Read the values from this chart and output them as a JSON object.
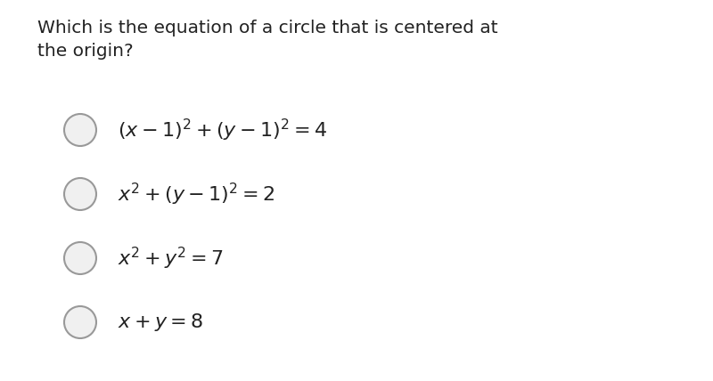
{
  "background_color": "#ffffff",
  "question_text": "Which is the equation of a circle that is centered at\nthe origin?",
  "question_fontsize": 14.5,
  "question_color": "#222222",
  "options": [
    {
      "formula": "$(x - 1)^2 + (y - 1)^2 = 4$",
      "fontsize": 16
    },
    {
      "formula": "$x^2 + (y - 1)^2 = 2$",
      "fontsize": 16
    },
    {
      "formula": "$x^2 + y^2 = 7$",
      "fontsize": 16
    },
    {
      "formula": "$x + y = 8$",
      "fontsize": 16
    }
  ],
  "circle_edge_color": "#999999",
  "circle_face_color": "#f0f0f0",
  "circle_linewidth": 1.5,
  "text_color": "#222222",
  "fig_width": 8.0,
  "fig_height": 4.28,
  "dpi": 100
}
